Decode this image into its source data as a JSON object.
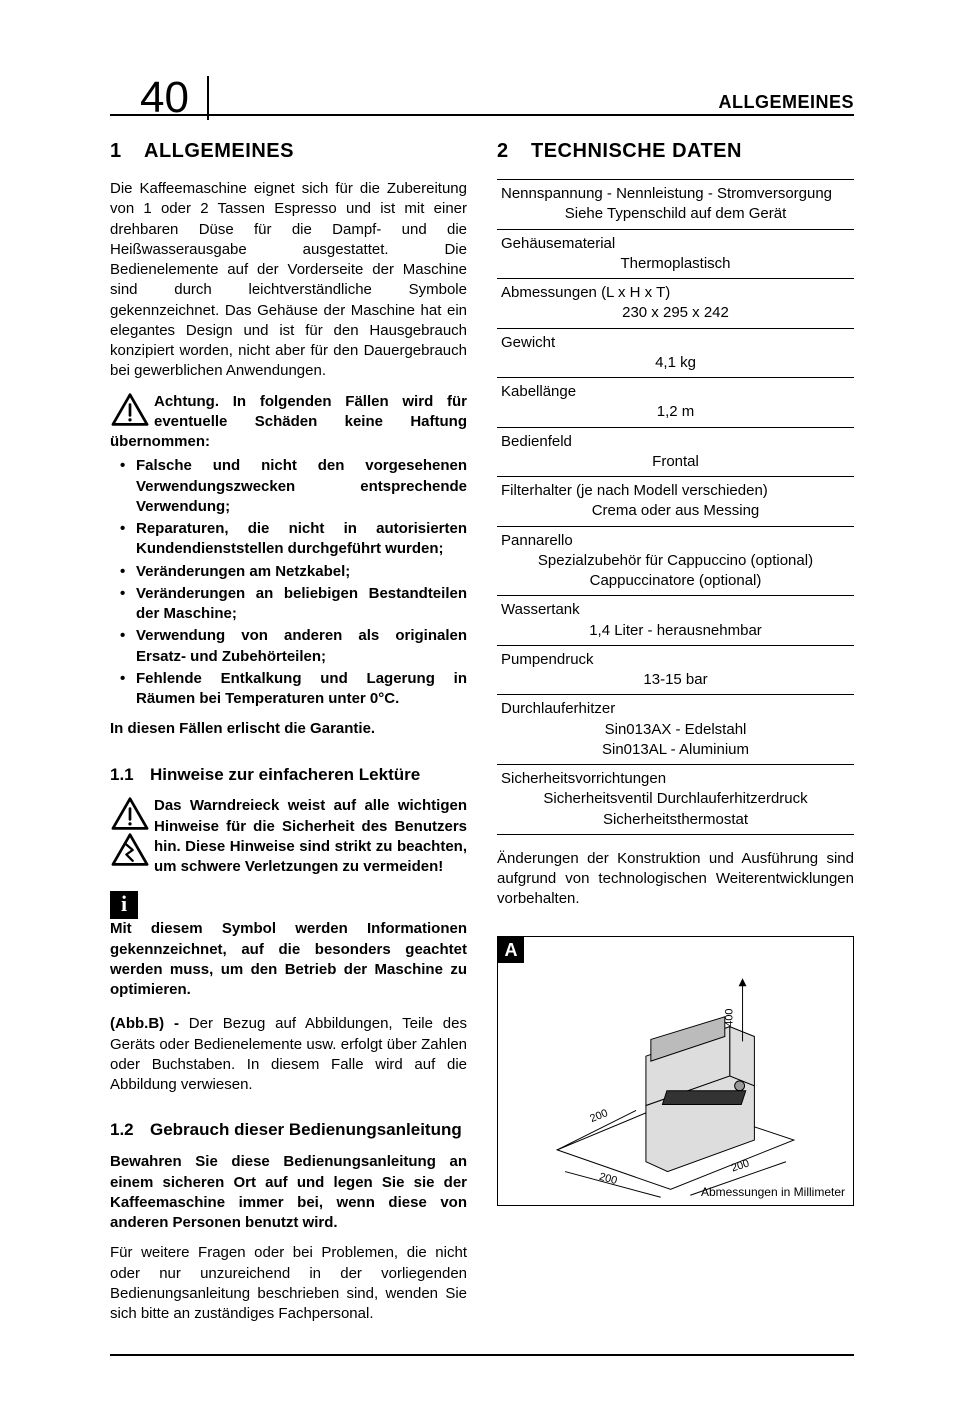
{
  "header": {
    "page_number": "40",
    "title": "ALLGEMEINES"
  },
  "col1": {
    "h1_num": "1",
    "h1_text": "ALLGEMEINES",
    "intro": "Die Kaffeemaschine eignet sich für die Zubereitung von 1 oder 2 Tassen Espresso und ist mit einer drehbaren Düse für die Dampf- und die Heißwasserausgabe ausgestattet. Die Bedienelemente auf der Vorderseite der Maschine sind durch leichtverständliche Symbole gekennzeichnet. Das Gehäuse der Maschine hat ein elegantes Design und ist für den Hausgebrauch konzipiert worden, nicht aber für den Dauergebrauch bei gewerblichen Anwendungen.",
    "warning_lead": "Achtung. In folgenden Fällen wird für eventuelle Schäden keine Haftung übernommen:",
    "warning_bullets": [
      "Falsche und nicht den vorgesehenen Verwendungszwecken entsprechende Verwendung;",
      "Reparaturen, die nicht in autorisierten Kundendienststellen durchgeführt wurden;",
      "Veränderungen am Netzkabel;",
      "Veränderungen an beliebigen Bestandteilen der Maschine;",
      "Verwendung von anderen als originalen Ersatz- und Zubehörteilen;",
      "Fehlende Entkalkung und Lagerung in Räumen bei Temperaturen unter 0°C."
    ],
    "warning_close": "In diesen Fällen erlischt die Garantie.",
    "h2a_num": "1.1",
    "h2a_text": "Hinweise zur einfacheren Lektüre",
    "triangle_text": "Das Warndreieck weist auf alle wichtigen Hinweise für die Sicherheit des Benutzers hin. Diese Hinweise sind strikt zu beachten, um schwere Verletzungen zu vermeiden!",
    "info_text": "Mit diesem Symbol werden Informationen gekennzeichnet, auf die besonders geachtet werden muss, um den Betrieb der Maschine zu optimieren.",
    "abb_label": "(Abb.B) - ",
    "abb_text": "Der Bezug auf Abbildungen, Teile des Geräts oder Bedienelemente usw. erfolgt über Zahlen oder Buchstaben. In diesem Falle wird auf die Abbildung verwiesen.",
    "h2b_num": "1.2",
    "h2b_text": "Gebrauch dieser Bedienungsanleitung",
    "p12a": "Bewahren Sie diese Bedienungsanleitung an einem sicheren Ort auf und legen Sie sie der Kaffeemaschine immer bei, wenn diese von anderen Personen benutzt wird.",
    "p12b": "Für weitere Fragen oder bei Problemen, die nicht oder nur unzureichend in der vorliegenden Bedienungsanleitung beschrieben sind, wenden Sie sich bitte an zuständiges Fachpersonal."
  },
  "col2": {
    "h1_num": "2",
    "h1_text": "TECHNISCHE DATEN",
    "specs": [
      {
        "label": "Nennspannung - Nennleistung - Stromversorgung",
        "value": "Siehe Typenschild auf dem Gerät"
      },
      {
        "label": "Gehäusematerial",
        "value": "Thermoplastisch"
      },
      {
        "label": "Abmessungen (L x H x T)",
        "value": "230 x 295 x 242"
      },
      {
        "label": "Gewicht",
        "value": "4,1 kg"
      },
      {
        "label": "Kabellänge",
        "value": "1,2 m"
      },
      {
        "label": "Bedienfeld",
        "value": "Frontal"
      },
      {
        "label": "Filterhalter (je nach Modell verschieden)",
        "value": "Crema oder aus Messing"
      },
      {
        "label": "Pannarello",
        "value": "Spezialzubehör für Cappuccino (optional)\nCappuccinatore (optional)"
      },
      {
        "label": "Wassertank",
        "value": "1,4 Liter - herausnehmbar"
      },
      {
        "label": "Pumpendruck",
        "value": "13-15 bar"
      },
      {
        "label": "Durchlauferhitzer",
        "value": "Sin013AX - Edelstahl\nSin013AL - Aluminium"
      },
      {
        "label": "Sicherheitsvorrichtungen",
        "value": "Sicherheitsventil Durchlauferhitzerdruck\nSicherheitsthermostat"
      }
    ],
    "note": "Änderungen der Konstruktion und Ausführung sind aufgrund von technologischen Weiterentwicklungen vorbehalten.",
    "diagram": {
      "letter": "A",
      "caption": "Abmessungen in Millimeter",
      "dim_height": "400",
      "dim_side1": "200",
      "dim_side2": "200",
      "dim_side3": "200"
    }
  }
}
